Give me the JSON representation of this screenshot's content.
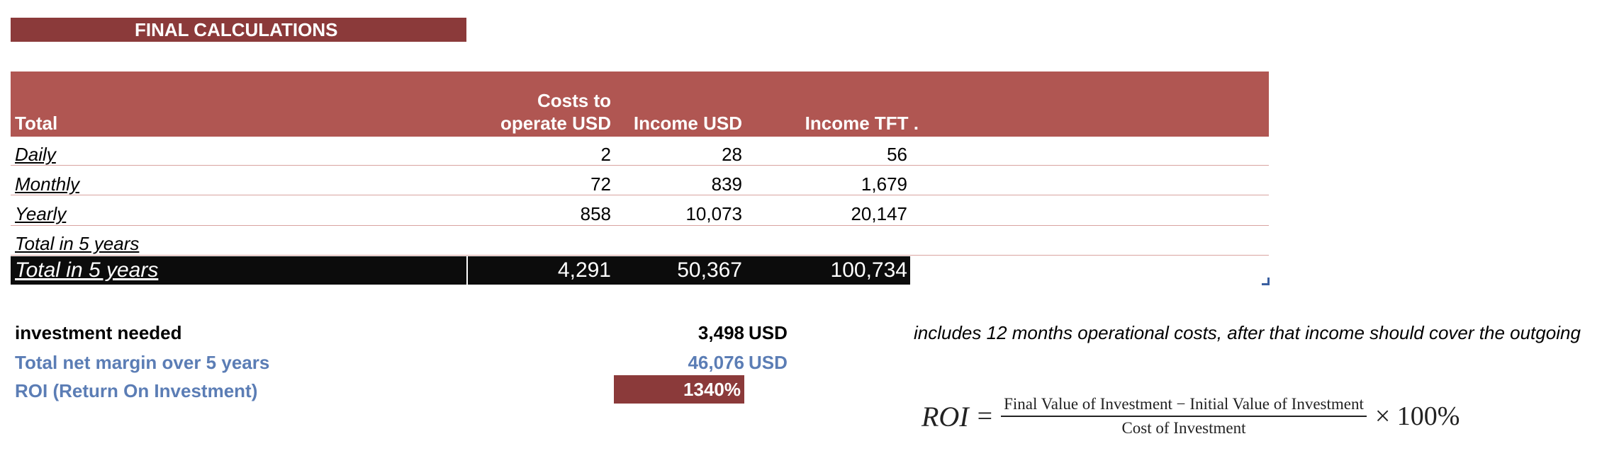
{
  "title": "FINAL CALCULATIONS",
  "table": {
    "headers": {
      "label": "Total",
      "costs_line1": "Costs to",
      "costs_line2": "operate USD",
      "income_usd": "Income USD",
      "income_tft": "Income TFT ."
    },
    "rows": [
      {
        "label": "Daily",
        "costs": "2",
        "income_usd": "28",
        "income_tft": "56"
      },
      {
        "label": "Monthly",
        "costs": "72",
        "income_usd": "839",
        "income_tft": "1,679"
      },
      {
        "label": "Yearly",
        "costs": "858",
        "income_usd": "10,073",
        "income_tft": "20,147"
      },
      {
        "label": "Total in 5 years",
        "costs": "",
        "income_usd": "",
        "income_tft": ""
      }
    ],
    "total_row": {
      "label": "Total in 5 years",
      "costs": "4,291",
      "income_usd": "50,367",
      "income_tft": "100,734"
    }
  },
  "summary": {
    "investment": {
      "label": "investment needed",
      "value": "3,498",
      "unit": "USD"
    },
    "net_margin": {
      "label": "Total net margin over 5 years",
      "value": "46,076",
      "unit": "USD"
    },
    "roi": {
      "label": "ROI (Return On Investment)",
      "value": "1340%"
    }
  },
  "note": "includes 12 months operational costs, after that income should cover the outgoing",
  "formula": {
    "lhs": "ROI",
    "eq": "=",
    "numerator": "Final Value of Investment − Initial Value of Investment",
    "denominator": "Cost of Investment",
    "tail": "× 100%"
  },
  "colors": {
    "title_bg": "#8b3a3a",
    "header_bg": "#b05652",
    "total_bg": "#0c0c0c",
    "accent_blue": "#5b7db5"
  }
}
